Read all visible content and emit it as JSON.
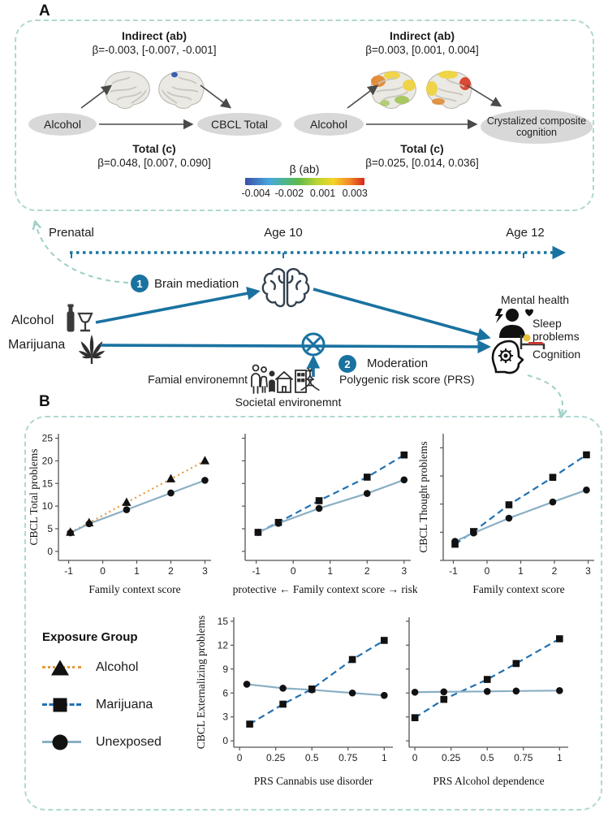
{
  "colors": {
    "accent_blue": "#1a72a0",
    "dashed_teal": "#aed9d2",
    "alcohol_orange": "#e59a3c",
    "marijuana_blue": "#2271b2",
    "unexposed_blue": "#8aafc4",
    "marker_black": "#111111",
    "node_gray": "#d8d8d8"
  },
  "icons": {
    "alcohol": "bottle-and-wine-glass-icon",
    "marijuana": "cannabis-leaf-icon",
    "brain_outline": "brain-icon",
    "moderation": "crossed-circle-icon",
    "society": "people-and-buildings-icon",
    "mental_health": "person-bolt-heart-icon",
    "sleep": "bed-icon",
    "cognition": "head-gear-icon",
    "brain_maps": "brain-surface-map-image"
  },
  "panelA": {
    "label": "A",
    "left": {
      "indirect_title": "Indirect (ab)",
      "indirect_value": "β=-0.003, [-0.007, -0.001]",
      "source": "Alcohol",
      "target": "CBCL Total",
      "total_title": "Total (c)",
      "total_value": "β=0.048, [0.007, 0.090]"
    },
    "right": {
      "indirect_title": "Indirect (ab)",
      "indirect_value": "β=0.003, [0.001, 0.004]",
      "source": "Alcohol",
      "target": "Crystalized composite cognition",
      "total_title": "Total (c)",
      "total_value": "β=0.025, [0.014, 0.036]"
    },
    "colorbar": {
      "title": "β (ab)",
      "ticks": [
        "-0.004",
        "-0.002",
        "0.001",
        "0.003"
      ]
    }
  },
  "timeline": {
    "labels": [
      "Prenatal",
      "Age 10",
      "Age 12"
    ]
  },
  "pathway": {
    "step1_number": "1",
    "step1_label": "Brain mediation",
    "step2_number": "2",
    "step2_label": "Moderation",
    "exposures": [
      {
        "label": "Alcohol"
      },
      {
        "label": "Marijuana"
      }
    ],
    "moderators": {
      "family": "Famial environemnt",
      "societal": "Societal environemnt",
      "prs": "Polygenic risk score (PRS)"
    },
    "outcomes": [
      "Mental health",
      "Sleep problems",
      "Cognition"
    ]
  },
  "panelB": {
    "label": "B",
    "legend": {
      "title": "Exposure Group",
      "items": [
        {
          "label": "Alcohol"
        },
        {
          "label": "Marijuana"
        },
        {
          "label": "Unexposed"
        }
      ]
    }
  },
  "chart_data": [
    {
      "type": "line",
      "xlabel": "Family context score",
      "ylabel": "CBCL Total problems",
      "xlim": [
        -1.3,
        3.18
      ],
      "ylim": [
        -2,
        26
      ],
      "xticks": [
        -1,
        0,
        1,
        2,
        3
      ],
      "yticks": [
        0,
        5,
        10,
        15,
        20,
        25
      ],
      "ytick_labels": true,
      "series": [
        {
          "name": "Alcohol",
          "marker": "triangle",
          "dash": "dotted",
          "color": "#e59a3c",
          "x": [
            -0.95,
            -0.4,
            0.7,
            2,
            3
          ],
          "y": [
            4.2,
            6.3,
            10.8,
            16.0,
            20.0
          ]
        },
        {
          "name": "Unexposed",
          "marker": "circle",
          "dash": "solid",
          "color": "#8aafc4",
          "x": [
            -0.95,
            -0.4,
            0.7,
            2,
            3
          ],
          "y": [
            4.1,
            6.1,
            9.2,
            12.9,
            15.7
          ]
        }
      ]
    },
    {
      "type": "line",
      "xlabel": "protective ← Family context score → risky",
      "ylabel": "",
      "xlim": [
        -1.3,
        3.18
      ],
      "ylim": [
        -2,
        26
      ],
      "xticks": [
        -1,
        0,
        1,
        2,
        3
      ],
      "yticks": [
        0,
        5,
        10,
        15,
        20,
        25
      ],
      "ytick_labels": false,
      "series": [
        {
          "name": "Marijuana",
          "marker": "square",
          "dash": "dashed",
          "color": "#2271b2",
          "x": [
            -0.95,
            -0.4,
            0.7,
            2,
            3
          ],
          "y": [
            4.2,
            6.4,
            11.2,
            16.4,
            21.3
          ]
        },
        {
          "name": "Unexposed",
          "marker": "circle",
          "dash": "solid",
          "color": "#8aafc4",
          "x": [
            -0.95,
            -0.4,
            0.7,
            2,
            3
          ],
          "y": [
            4.2,
            6.2,
            9.5,
            12.8,
            15.8
          ]
        }
      ]
    },
    {
      "type": "line",
      "xlabel": "Family context score",
      "ylabel": "CBCL Thought problems",
      "xlim": [
        -1.3,
        3.18
      ],
      "ylim": [
        0,
        9
      ],
      "xticks": [
        -1,
        0,
        1,
        2,
        3
      ],
      "yticks": [
        0,
        2,
        4,
        6,
        8
      ],
      "ytick_labels": false,
      "series": [
        {
          "name": "Marijuana",
          "marker": "square",
          "dash": "dashed",
          "color": "#2271b2",
          "x": [
            -0.95,
            -0.4,
            0.65,
            1.95,
            2.95
          ],
          "y": [
            1.15,
            2.05,
            3.95,
            5.9,
            7.5
          ]
        },
        {
          "name": "Unexposed",
          "marker": "circle",
          "dash": "solid",
          "color": "#8aafc4",
          "x": [
            -0.95,
            -0.4,
            0.65,
            1.95,
            2.95
          ],
          "y": [
            1.35,
            1.95,
            3.0,
            4.15,
            5.0
          ]
        }
      ]
    },
    {
      "type": "line",
      "xlabel": "PRS Cannabis use disorder",
      "ylabel": "CBCL Externalizing problems",
      "xlim": [
        -0.04,
        1.06
      ],
      "ylim": [
        -0.8,
        15.5
      ],
      "xticks": [
        0,
        0.25,
        0.5,
        0.75,
        1
      ],
      "yticks": [
        0,
        3,
        6,
        9,
        12,
        15
      ],
      "ytick_labels": true,
      "series": [
        {
          "name": "Marijuana",
          "marker": "square",
          "dash": "dashed",
          "color": "#2271b2",
          "x": [
            0.07,
            0.3,
            0.5,
            0.78,
            1
          ],
          "y": [
            2.1,
            4.6,
            6.5,
            10.2,
            12.6
          ]
        },
        {
          "name": "Unexposed",
          "marker": "circle",
          "dash": "solid",
          "color": "#8aafc4",
          "x": [
            0.05,
            0.3,
            0.5,
            0.78,
            1
          ],
          "y": [
            7.1,
            6.6,
            6.4,
            6.0,
            5.7
          ]
        }
      ]
    },
    {
      "type": "line",
      "xlabel": "PRS Alcohol dependence",
      "ylabel": "",
      "xlim": [
        -0.04,
        1.06
      ],
      "ylim": [
        -0.8,
        15.5
      ],
      "xticks": [
        0,
        0.25,
        0.5,
        0.75,
        1
      ],
      "yticks": [
        0,
        3,
        6,
        9,
        12,
        15
      ],
      "ytick_labels": false,
      "series": [
        {
          "name": "Marijuana",
          "marker": "square",
          "dash": "dashed",
          "color": "#2271b2",
          "x": [
            0,
            0.2,
            0.5,
            0.7,
            1
          ],
          "y": [
            2.9,
            5.2,
            7.7,
            9.7,
            12.8
          ]
        },
        {
          "name": "Unexposed",
          "marker": "circle",
          "dash": "solid",
          "color": "#8aafc4",
          "x": [
            0,
            0.2,
            0.5,
            0.7,
            1
          ],
          "y": [
            6.1,
            6.15,
            6.2,
            6.25,
            6.3
          ]
        }
      ]
    }
  ]
}
